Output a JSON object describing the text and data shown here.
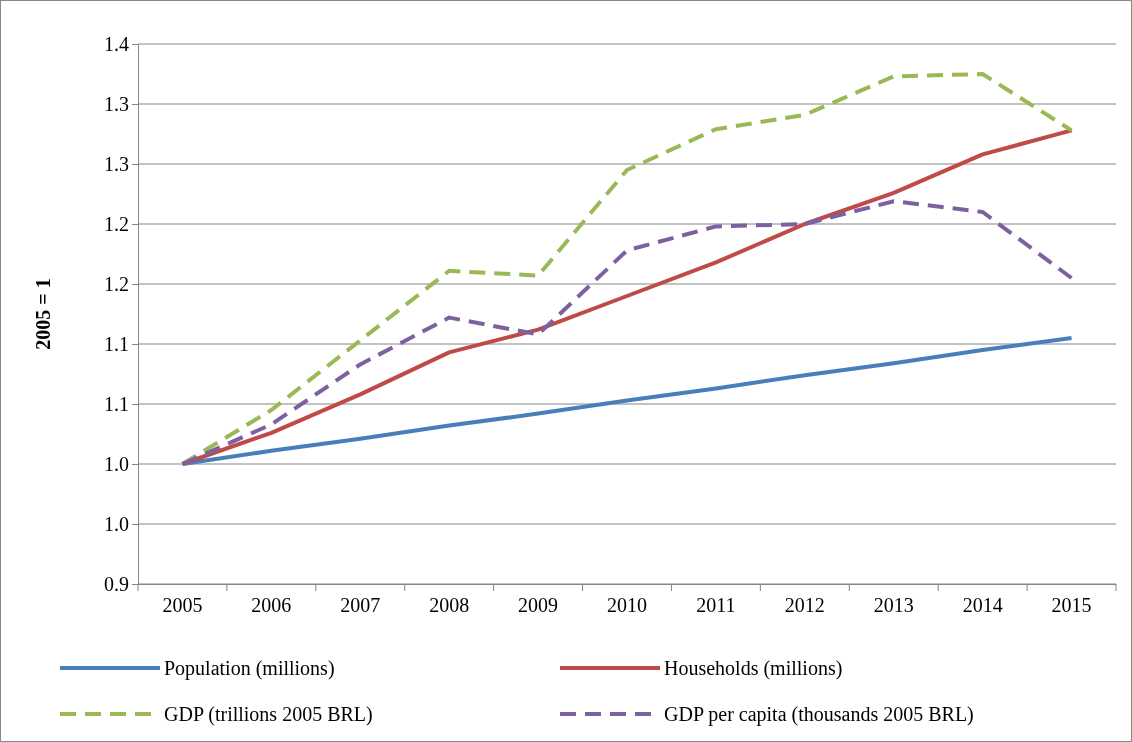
{
  "chart_data": {
    "type": "line",
    "ylabel": "2005 = 1",
    "categories": [
      "2005",
      "2006",
      "2007",
      "2008",
      "2009",
      "2010",
      "2011",
      "2012",
      "2013",
      "2014",
      "2015"
    ],
    "ylim": [
      0.9,
      1.35
    ],
    "yticks": [
      {
        "value": 0.9,
        "label": "0.9"
      },
      {
        "value": 0.95,
        "label": "1.0"
      },
      {
        "value": 1.0,
        "label": "1.0"
      },
      {
        "value": 1.05,
        "label": "1.1"
      },
      {
        "value": 1.1,
        "label": "1.1"
      },
      {
        "value": 1.15,
        "label": "1.2"
      },
      {
        "value": 1.2,
        "label": "1.2"
      },
      {
        "value": 1.25,
        "label": "1.3"
      },
      {
        "value": 1.3,
        "label": "1.3"
      },
      {
        "value": 1.35,
        "label": "1.4"
      }
    ],
    "grid": "y",
    "legend": "bottom",
    "marker": "none",
    "series": [
      {
        "name": "Population (millions)",
        "color": "#4a7ebb",
        "line_style": "solid",
        "values": [
          1.0,
          1.011,
          1.021,
          1.032,
          1.042,
          1.053,
          1.063,
          1.074,
          1.084,
          1.095,
          1.105
        ]
      },
      {
        "name": "Households (millions)",
        "color": "#be4b48",
        "line_style": "solid",
        "values": [
          1.0,
          1.026,
          1.058,
          1.093,
          1.112,
          1.14,
          1.168,
          1.2,
          1.226,
          1.258,
          1.278
        ]
      },
      {
        "name": "GDP (trillions 2005 BRL)",
        "color": "#98b954",
        "line_style": "dashed",
        "values": [
          1.0,
          1.045,
          1.103,
          1.161,
          1.157,
          1.245,
          1.279,
          1.291,
          1.323,
          1.325,
          1.278
        ]
      },
      {
        "name": "GDP per capita (thousands 2005 BRL)",
        "color": "#7d60a0",
        "line_style": "dashed",
        "values": [
          1.0,
          1.033,
          1.083,
          1.122,
          1.108,
          1.178,
          1.198,
          1.2,
          1.219,
          1.21,
          1.155
        ]
      }
    ]
  }
}
